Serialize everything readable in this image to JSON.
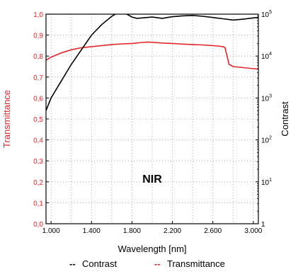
{
  "chart_data": {
    "type": "line",
    "annotation": "NIR",
    "xlabel": "Wavelength [nm]",
    "ylabel_left": "Transmittance",
    "ylabel_right": "Contrast",
    "xlim": [
      950,
      3050
    ],
    "ylim_left": [
      0.0,
      1.0
    ],
    "ylim_right_log10": [
      0,
      5
    ],
    "x_ticks": [
      1000,
      1400,
      1800,
      2200,
      2600,
      3000
    ],
    "x_tick_labels": [
      "1.000",
      "1.400",
      "1.800",
      "2.200",
      "2.600",
      "3.000"
    ],
    "y_left_ticks": [
      0.0,
      0.1,
      0.2,
      0.3,
      0.4,
      0.5,
      0.6,
      0.7,
      0.8,
      0.9,
      1.0
    ],
    "y_left_tick_labels": [
      "0,0",
      "0,1",
      "0,2",
      "0,3",
      "0,4",
      "0,5",
      "0,6",
      "0,7",
      "0,8",
      "0,9",
      "1,0"
    ],
    "y_right_ticks": [
      {
        "base": "1",
        "exp": ""
      },
      {
        "base": "10",
        "exp": "1"
      },
      {
        "base": "10",
        "exp": "2"
      },
      {
        "base": "10",
        "exp": "3"
      },
      {
        "base": "10",
        "exp": "4"
      },
      {
        "base": "10",
        "exp": "5"
      }
    ],
    "grid": true,
    "legend": [
      {
        "marker": "--",
        "label": "Contrast",
        "color": "#000000"
      },
      {
        "marker": "--",
        "label": "Transmittance",
        "color": "#e3262a"
      }
    ],
    "series": [
      {
        "name": "Transmittance",
        "axis": "left",
        "color": "#e3262a",
        "x": [
          950,
          1000,
          1100,
          1200,
          1300,
          1400,
          1500,
          1600,
          1700,
          1800,
          1900,
          1950,
          2000,
          2100,
          2200,
          2300,
          2400,
          2500,
          2600,
          2650,
          2700,
          2720,
          2740,
          2760,
          2800,
          2900,
          3000,
          3050
        ],
        "y": [
          0.78,
          0.795,
          0.815,
          0.83,
          0.84,
          0.845,
          0.85,
          0.855,
          0.858,
          0.86,
          0.865,
          0.867,
          0.866,
          0.862,
          0.86,
          0.857,
          0.855,
          0.853,
          0.85,
          0.848,
          0.845,
          0.84,
          0.8,
          0.76,
          0.75,
          0.745,
          0.74,
          0.738
        ]
      },
      {
        "name": "Contrast",
        "axis": "right",
        "color": "#000000",
        "x": [
          950,
          1000,
          1100,
          1200,
          1300,
          1400,
          1500,
          1600,
          1650,
          1700,
          1750,
          1800,
          1850,
          1900,
          2000,
          2100,
          2200,
          2300,
          2400,
          2500,
          2600,
          2700,
          2800,
          2900,
          3000,
          3050
        ],
        "y_log10": [
          2.7,
          3.0,
          3.4,
          3.8,
          4.15,
          4.5,
          4.75,
          4.95,
          5.02,
          5.05,
          5.0,
          4.93,
          4.9,
          4.91,
          4.93,
          4.9,
          4.94,
          4.96,
          4.97,
          4.95,
          4.92,
          4.89,
          4.86,
          4.88,
          4.91,
          4.92
        ]
      }
    ]
  }
}
